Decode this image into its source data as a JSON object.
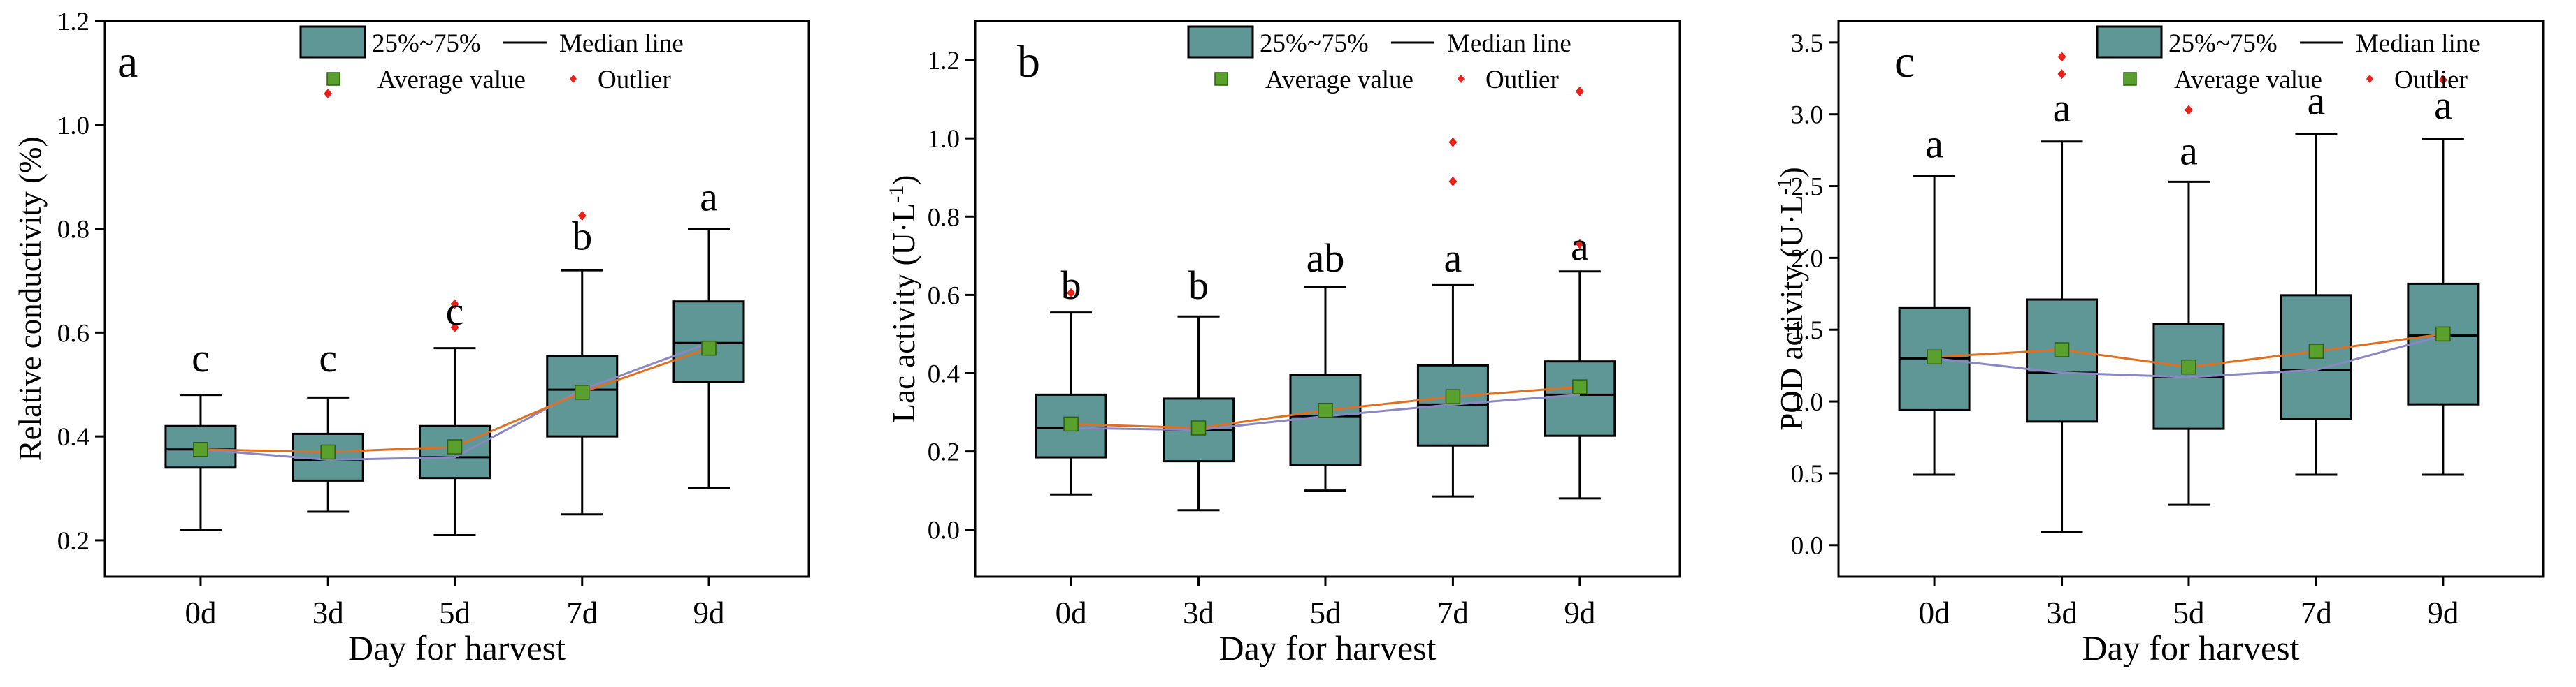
{
  "chart_data": [
    {
      "panel": "a",
      "type": "box",
      "xlabel": "Day for harvest",
      "ylabel_main": "Relative conductivity (%)",
      "ylabel_sup": "",
      "ylabel_tail": "",
      "ylim": [
        0.13,
        1.2
      ],
      "yticks": [
        0.2,
        0.4,
        0.6,
        0.8,
        1.0,
        1.2
      ],
      "ytick_labels": [
        "0.2",
        "0.4",
        "0.6",
        "0.8",
        "1.0",
        "1.2"
      ],
      "categories": [
        "0d",
        "3d",
        "5d",
        "7d",
        "9d"
      ],
      "boxes": [
        {
          "min": 0.22,
          "q1": 0.34,
          "median": 0.375,
          "q3": 0.42,
          "max": 0.48,
          "mean": 0.375
        },
        {
          "min": 0.255,
          "q1": 0.315,
          "median": 0.355,
          "q3": 0.405,
          "max": 0.475,
          "mean": 0.37
        },
        {
          "min": 0.21,
          "q1": 0.32,
          "median": 0.36,
          "q3": 0.42,
          "max": 0.57,
          "mean": 0.38
        },
        {
          "min": 0.25,
          "q1": 0.4,
          "median": 0.49,
          "q3": 0.555,
          "max": 0.72,
          "mean": 0.485
        },
        {
          "min": 0.3,
          "q1": 0.505,
          "median": 0.58,
          "q3": 0.66,
          "max": 0.8,
          "mean": 0.57
        }
      ],
      "outliers": [
        {
          "cat": "5d",
          "value": 0.655
        },
        {
          "cat": "5d",
          "value": 0.61
        },
        {
          "cat": "7d",
          "value": 0.825
        }
      ],
      "letters": [
        {
          "cat": "0d",
          "text": "c",
          "value": 0.525
        },
        {
          "cat": "3d",
          "text": "c",
          "value": 0.525
        },
        {
          "cat": "5d",
          "text": "c",
          "value": 0.615
        },
        {
          "cat": "7d",
          "text": "b",
          "value": 0.76
        },
        {
          "cat": "9d",
          "text": "a",
          "value": 0.835
        }
      ],
      "legend": {
        "box": "25%~75%",
        "median": "Median line",
        "average": "Average value",
        "outlier": "Outlier"
      },
      "legend_stray_outlier": {
        "cat": "3d",
        "value": 1.06
      }
    },
    {
      "panel": "b",
      "type": "box",
      "xlabel": "Day for harvest",
      "ylabel_main": "Lac activity (U·L",
      "ylabel_sup": "-1",
      "ylabel_tail": ")",
      "ylim": [
        -0.12,
        1.3
      ],
      "yticks": [
        0.0,
        0.2,
        0.4,
        0.6,
        0.8,
        1.0,
        1.2
      ],
      "ytick_labels": [
        "0.0",
        "0.2",
        "0.4",
        "0.6",
        "0.8",
        "1.0",
        "1.2"
      ],
      "categories": [
        "0d",
        "3d",
        "5d",
        "7d",
        "9d"
      ],
      "boxes": [
        {
          "min": 0.09,
          "q1": 0.185,
          "median": 0.26,
          "q3": 0.345,
          "max": 0.555,
          "mean": 0.27
        },
        {
          "min": 0.05,
          "q1": 0.175,
          "median": 0.255,
          "q3": 0.335,
          "max": 0.545,
          "mean": 0.26
        },
        {
          "min": 0.1,
          "q1": 0.165,
          "median": 0.29,
          "q3": 0.395,
          "max": 0.62,
          "mean": 0.305
        },
        {
          "min": 0.085,
          "q1": 0.215,
          "median": 0.32,
          "q3": 0.42,
          "max": 0.625,
          "mean": 0.34
        },
        {
          "min": 0.08,
          "q1": 0.24,
          "median": 0.345,
          "q3": 0.43,
          "max": 0.66,
          "mean": 0.365
        }
      ],
      "outliers": [
        {
          "cat": "0d",
          "value": 0.605
        },
        {
          "cat": "7d",
          "value": 0.99
        },
        {
          "cat": "7d",
          "value": 0.89
        },
        {
          "cat": "9d",
          "value": 1.12
        },
        {
          "cat": "9d",
          "value": 0.73
        }
      ],
      "letters": [
        {
          "cat": "0d",
          "text": "b",
          "value": 0.59
        },
        {
          "cat": "3d",
          "text": "b",
          "value": 0.59
        },
        {
          "cat": "5d",
          "text": "ab",
          "value": 0.66
        },
        {
          "cat": "7d",
          "text": "a",
          "value": 0.66
        },
        {
          "cat": "9d",
          "text": "a",
          "value": 0.69
        }
      ],
      "legend": {
        "box": "25%~75%",
        "median": "Median line",
        "average": "Average value",
        "outlier": "Outlier"
      }
    },
    {
      "panel": "c",
      "type": "box",
      "xlabel": "Day for harvest",
      "ylabel_main": "POD activity (U·L",
      "ylabel_sup": "-1",
      "ylabel_tail": ")",
      "ylim": [
        -0.22,
        3.65
      ],
      "yticks": [
        0.0,
        0.5,
        1.0,
        1.5,
        2.0,
        2.5,
        3.0,
        3.5
      ],
      "ytick_labels": [
        "0.0",
        "0.5",
        "1.0",
        "1.5",
        "2.0",
        "2.5",
        "3.0",
        "3.5"
      ],
      "categories": [
        "0d",
        "3d",
        "5d",
        "7d",
        "9d"
      ],
      "boxes": [
        {
          "min": 0.49,
          "q1": 0.94,
          "median": 1.3,
          "q3": 1.65,
          "max": 2.57,
          "mean": 1.31
        },
        {
          "min": 0.09,
          "q1": 0.86,
          "median": 1.2,
          "q3": 1.71,
          "max": 2.81,
          "mean": 1.36
        },
        {
          "min": 0.28,
          "q1": 0.81,
          "median": 1.17,
          "q3": 1.54,
          "max": 2.53,
          "mean": 1.24
        },
        {
          "min": 0.49,
          "q1": 0.88,
          "median": 1.22,
          "q3": 1.74,
          "max": 2.86,
          "mean": 1.35
        },
        {
          "min": 0.49,
          "q1": 0.98,
          "median": 1.46,
          "q3": 1.82,
          "max": 2.83,
          "mean": 1.47
        }
      ],
      "outliers": [
        {
          "cat": "3d",
          "value": 3.4
        },
        {
          "cat": "3d",
          "value": 3.28
        },
        {
          "cat": "5d",
          "value": 3.03
        },
        {
          "cat": "9d",
          "value": 3.24
        }
      ],
      "letters": [
        {
          "cat": "0d",
          "text": "a",
          "value": 2.7
        },
        {
          "cat": "3d",
          "text": "a",
          "value": 2.95
        },
        {
          "cat": "5d",
          "text": "a",
          "value": 2.65
        },
        {
          "cat": "7d",
          "text": "a",
          "value": 3.0
        },
        {
          "cat": "9d",
          "text": "a",
          "value": 2.97
        }
      ],
      "legend": {
        "box": "25%~75%",
        "median": "Median line",
        "average": "Average value",
        "outlier": "Outlier"
      }
    }
  ],
  "colors": {
    "box_fill": "#5f9797",
    "mean_marker": "#5aa02c",
    "outlier": "#e8211a",
    "mean_line": "#e06f1f",
    "median_line": "#8b87c4"
  }
}
